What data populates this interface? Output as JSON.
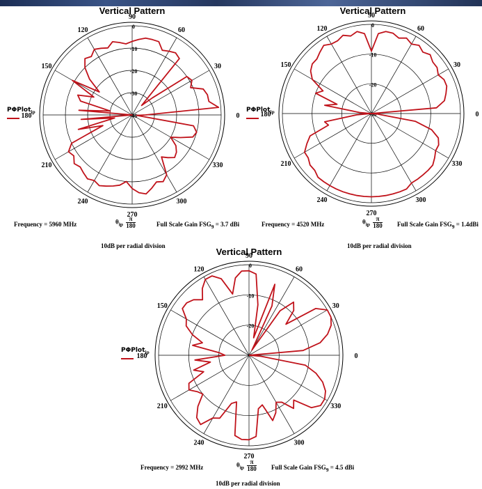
{
  "chart_data": [
    {
      "type": "polar-line",
      "title": "Vertical Pattern",
      "angle_labels": [
        "90",
        "60",
        "30",
        "0",
        "330",
        "300",
        "270",
        "240",
        "210",
        "180",
        "150",
        "120"
      ],
      "radial_labels": [
        "0",
        "-10",
        "-20",
        "-30",
        "-40"
      ],
      "series_label": "PΦPlot",
      "series_subscript": "ip",
      "frequency_text": "Frequency = 5960 MHz",
      "theta_text": "θ",
      "theta_subscript": "ip",
      "theta_num": "π",
      "theta_den": "180",
      "gain_text": "Full Scale Gain FSG",
      "gain_subscript": "9",
      "gain_value": " = 3.7 dBi",
      "division_text": "10dB per radial division",
      "line_color": "#c0121a",
      "points": [
        [
          0,
          -34
        ],
        [
          5,
          -1
        ],
        [
          10,
          -5
        ],
        [
          15,
          -5
        ],
        [
          20,
          -6
        ],
        [
          25,
          -11
        ],
        [
          30,
          -9
        ],
        [
          35,
          -10
        ],
        [
          40,
          -28
        ],
        [
          45,
          -34
        ],
        [
          50,
          -7
        ],
        [
          55,
          -6
        ],
        [
          60,
          -7
        ],
        [
          65,
          -8
        ],
        [
          70,
          -5
        ],
        [
          75,
          -5
        ],
        [
          80,
          -5
        ],
        [
          85,
          -6
        ],
        [
          90,
          -7
        ],
        [
          95,
          -8
        ],
        [
          100,
          -7
        ],
        [
          105,
          -6
        ],
        [
          110,
          -8
        ],
        [
          115,
          -7
        ],
        [
          120,
          -6
        ],
        [
          125,
          -8
        ],
        [
          130,
          -7
        ],
        [
          135,
          -10
        ],
        [
          140,
          -15
        ],
        [
          145,
          -22
        ],
        [
          150,
          -9
        ],
        [
          155,
          -21
        ],
        [
          160,
          -14
        ],
        [
          165,
          -16
        ],
        [
          170,
          -30
        ],
        [
          175,
          -16
        ],
        [
          180,
          -40
        ],
        [
          185,
          -17
        ],
        [
          190,
          -32
        ],
        [
          195,
          -15
        ],
        [
          200,
          -26
        ],
        [
          205,
          -10
        ],
        [
          210,
          -7
        ],
        [
          215,
          -8
        ],
        [
          220,
          -6
        ],
        [
          225,
          -7
        ],
        [
          230,
          -6
        ],
        [
          235,
          -5
        ],
        [
          240,
          -6
        ],
        [
          245,
          -5
        ],
        [
          250,
          -6
        ],
        [
          255,
          -7
        ],
        [
          260,
          -8
        ],
        [
          265,
          -10
        ],
        [
          270,
          -7
        ],
        [
          275,
          -5
        ],
        [
          280,
          -4
        ],
        [
          285,
          -6
        ],
        [
          290,
          -8
        ],
        [
          295,
          -7
        ],
        [
          300,
          -9
        ],
        [
          305,
          -17
        ],
        [
          310,
          -15
        ],
        [
          315,
          -13
        ],
        [
          320,
          -14
        ],
        [
          325,
          -16
        ],
        [
          330,
          -20
        ],
        [
          335,
          -16
        ],
        [
          340,
          -11
        ],
        [
          345,
          -10
        ],
        [
          350,
          -12
        ],
        [
          355,
          -38
        ],
        [
          360,
          -34
        ]
      ]
    },
    {
      "type": "polar-line",
      "title": "Vertical Pattern",
      "angle_labels": [
        "90",
        "60",
        "30",
        "0",
        "330",
        "300",
        "270",
        "240",
        "210",
        "180",
        "150",
        "120"
      ],
      "radial_labels": [
        "0",
        "-10",
        "-20",
        "-30"
      ],
      "series_label": "PΦPlot",
      "series_subscript": "ip",
      "frequency_text": "Frequency = 4520 MHz",
      "theta_text": "θ",
      "theta_subscript": "ip",
      "theta_num": "π",
      "theta_den": "180",
      "gain_text": "Full Scale Gain FSG",
      "gain_subscript": "9",
      "gain_value": " = 1.4dBi",
      "division_text": "10dB per radial division",
      "line_color": "#c0121a",
      "points": [
        [
          0,
          -30
        ],
        [
          5,
          -8
        ],
        [
          10,
          -5
        ],
        [
          15,
          -4
        ],
        [
          20,
          -3
        ],
        [
          25,
          -3
        ],
        [
          30,
          -4
        ],
        [
          35,
          -3
        ],
        [
          40,
          -3
        ],
        [
          45,
          -2
        ],
        [
          50,
          -3
        ],
        [
          55,
          -2
        ],
        [
          60,
          -3
        ],
        [
          65,
          -2
        ],
        [
          70,
          -3
        ],
        [
          75,
          -2
        ],
        [
          80,
          -2
        ],
        [
          85,
          -3
        ],
        [
          90,
          -9
        ],
        [
          95,
          -3
        ],
        [
          100,
          -2
        ],
        [
          105,
          -3
        ],
        [
          110,
          -2
        ],
        [
          115,
          -3
        ],
        [
          120,
          -3
        ],
        [
          125,
          -2
        ],
        [
          130,
          -3
        ],
        [
          135,
          -4
        ],
        [
          140,
          -4
        ],
        [
          145,
          -5
        ],
        [
          150,
          -7
        ],
        [
          155,
          -12
        ],
        [
          160,
          -10
        ],
        [
          165,
          -18
        ],
        [
          170,
          -14
        ],
        [
          175,
          -26
        ],
        [
          180,
          -30
        ],
        [
          185,
          -25
        ],
        [
          190,
          -14
        ],
        [
          195,
          -15
        ],
        [
          200,
          -8
        ],
        [
          205,
          -6
        ],
        [
          210,
          -4
        ],
        [
          215,
          -4
        ],
        [
          220,
          -3
        ],
        [
          225,
          -3
        ],
        [
          230,
          -2
        ],
        [
          235,
          -2
        ],
        [
          240,
          -2
        ],
        [
          245,
          -2
        ],
        [
          250,
          -2
        ],
        [
          255,
          -2
        ],
        [
          260,
          -2
        ],
        [
          265,
          -2
        ],
        [
          270,
          -2
        ],
        [
          275,
          -2
        ],
        [
          280,
          -2
        ],
        [
          285,
          -2
        ],
        [
          290,
          -2
        ],
        [
          295,
          -2
        ],
        [
          300,
          -3
        ],
        [
          305,
          -3
        ],
        [
          310,
          -3
        ],
        [
          315,
          -3
        ],
        [
          320,
          -3
        ],
        [
          325,
          -4
        ],
        [
          330,
          -5
        ],
        [
          335,
          -5
        ],
        [
          340,
          -6
        ],
        [
          345,
          -9
        ],
        [
          350,
          -15
        ],
        [
          355,
          -28
        ],
        [
          360,
          -30
        ]
      ]
    },
    {
      "type": "polar-line",
      "title": "Vertical Pattern",
      "angle_labels": [
        "90",
        "60",
        "30",
        "0",
        "330",
        "300",
        "270",
        "240",
        "210",
        "180",
        "150",
        "120"
      ],
      "radial_labels": [
        "0",
        "-10",
        "-20"
      ],
      "series_label": "PΦPlot",
      "series_subscript": "ip",
      "frequency_text": "Frequency = 2992 MHz",
      "theta_text": "θ",
      "theta_subscript": "ip",
      "theta_num": "π",
      "theta_den": "180",
      "gain_text": "Full Scale Gain FSG",
      "gain_subscript": "9",
      "gain_value": " = 4.5 dBi",
      "division_text": "10dB per radial division",
      "line_color": "#c0121a",
      "points": [
        [
          0,
          -30
        ],
        [
          5,
          -12
        ],
        [
          10,
          -6
        ],
        [
          15,
          -3
        ],
        [
          20,
          -1
        ],
        [
          25,
          0
        ],
        [
          30,
          0
        ],
        [
          35,
          -3
        ],
        [
          40,
          -14
        ],
        [
          45,
          -9
        ],
        [
          50,
          -7
        ],
        [
          55,
          -12
        ],
        [
          60,
          -28
        ],
        [
          65,
          -12
        ],
        [
          70,
          -5
        ],
        [
          75,
          -24
        ],
        [
          80,
          -13
        ],
        [
          85,
          -3
        ],
        [
          90,
          -2
        ],
        [
          95,
          -2
        ],
        [
          100,
          -4
        ],
        [
          105,
          -9
        ],
        [
          110,
          -3
        ],
        [
          115,
          -1
        ],
        [
          120,
          -1
        ],
        [
          125,
          -3
        ],
        [
          130,
          -6
        ],
        [
          135,
          -4
        ],
        [
          140,
          -3
        ],
        [
          145,
          -3
        ],
        [
          150,
          -6
        ],
        [
          155,
          -7
        ],
        [
          160,
          -10
        ],
        [
          165,
          -14
        ],
        [
          170,
          -11
        ],
        [
          175,
          -20
        ],
        [
          180,
          -22
        ],
        [
          185,
          -12
        ],
        [
          190,
          -17
        ],
        [
          195,
          -11
        ],
        [
          200,
          -14
        ],
        [
          205,
          -8
        ],
        [
          210,
          -7
        ],
        [
          215,
          -9
        ],
        [
          220,
          -10
        ],
        [
          225,
          -6
        ],
        [
          230,
          -3
        ],
        [
          235,
          -2
        ],
        [
          240,
          -6
        ],
        [
          245,
          -7
        ],
        [
          250,
          -13
        ],
        [
          255,
          -14
        ],
        [
          260,
          -3
        ],
        [
          265,
          -2
        ],
        [
          270,
          -2
        ],
        [
          275,
          -3
        ],
        [
          280,
          -12
        ],
        [
          285,
          -13
        ],
        [
          290,
          -7
        ],
        [
          295,
          -9
        ],
        [
          300,
          -12
        ],
        [
          305,
          -11
        ],
        [
          310,
          -7
        ],
        [
          315,
          -9
        ],
        [
          320,
          -3
        ],
        [
          325,
          -1
        ],
        [
          330,
          -1
        ],
        [
          335,
          -2
        ],
        [
          340,
          -4
        ],
        [
          345,
          -7
        ],
        [
          350,
          -11
        ],
        [
          355,
          -26
        ],
        [
          360,
          -30
        ]
      ]
    }
  ]
}
